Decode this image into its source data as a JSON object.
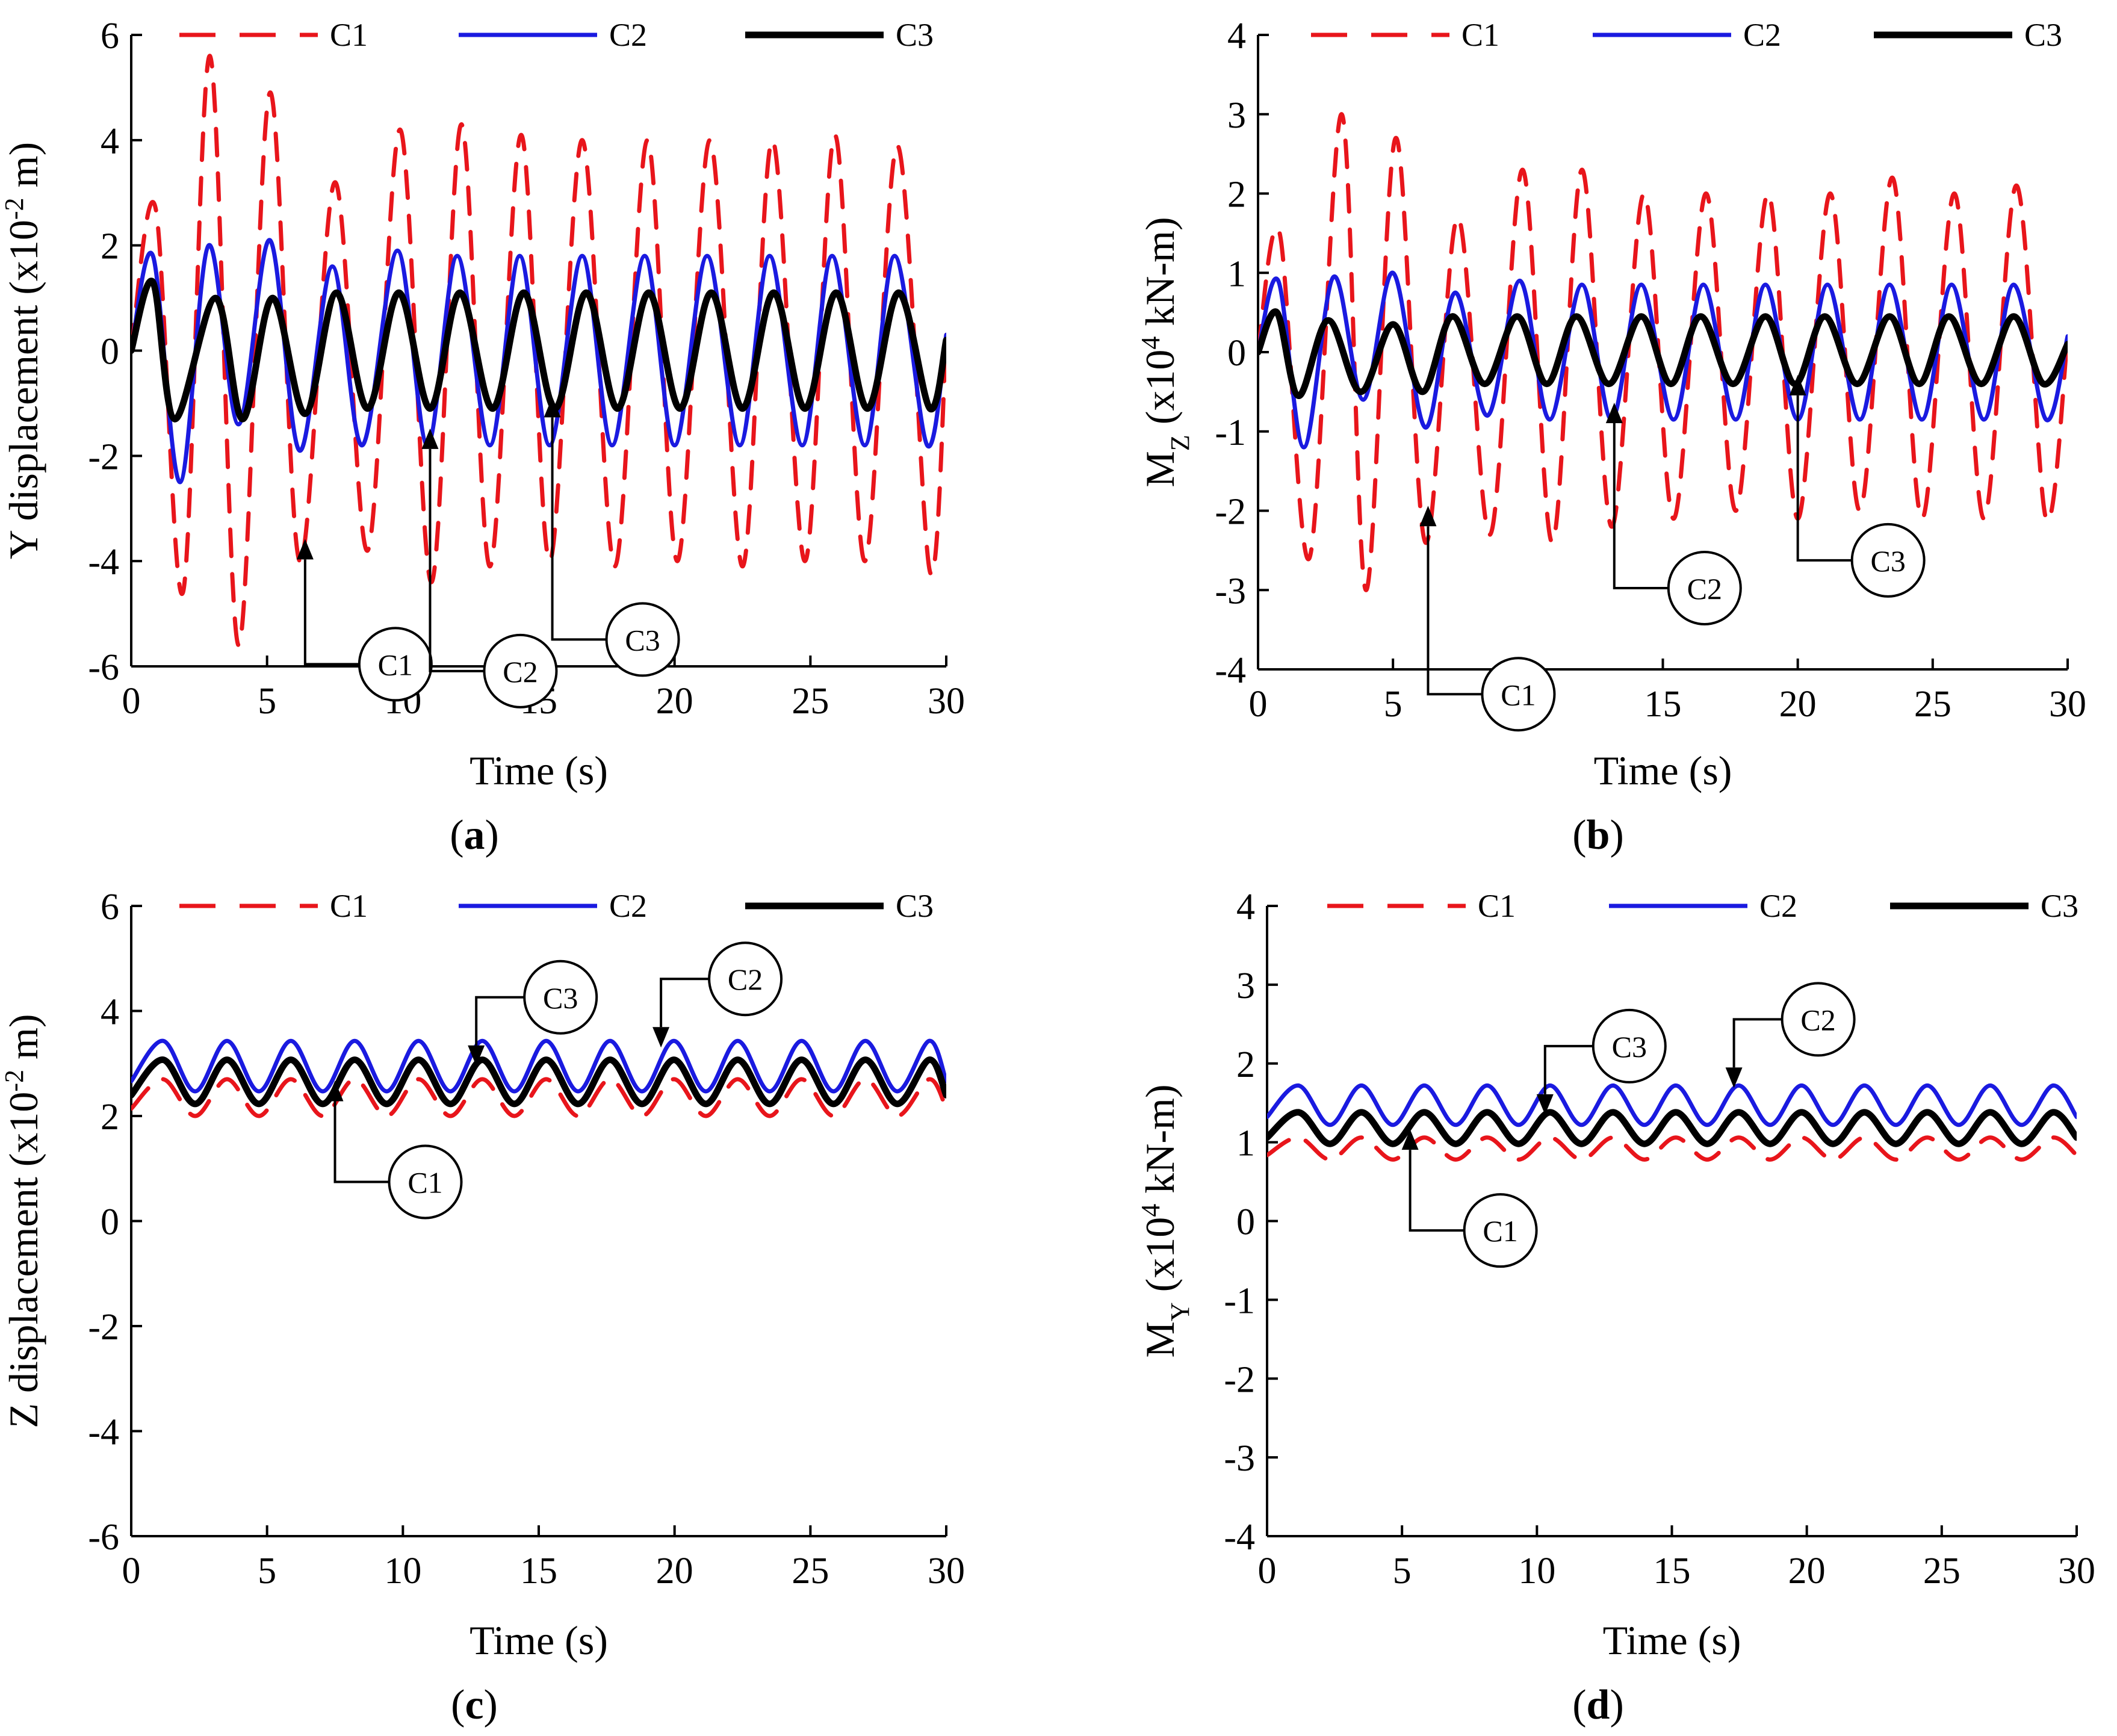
{
  "chart_data": [
    {
      "panel": "a",
      "type": "line",
      "xlabel": "Time (s)",
      "ylabel": "Y displacement (x10-2 m)",
      "ylabel_parts": [
        "Y displacement (x10",
        "-2",
        " m)"
      ],
      "xlim": [
        0,
        30
      ],
      "ylim": [
        -6,
        6
      ],
      "xticks": [
        "0",
        "5",
        "10",
        "15",
        "20",
        "25",
        "30"
      ],
      "yticks": [
        "-6",
        "-4",
        "-2",
        "0",
        "2",
        "4",
        "6"
      ],
      "legend": [
        "C1",
        "C2",
        "C3"
      ],
      "legend_position": "top",
      "series": [
        {
          "name": "C1",
          "color": "#e8151b",
          "style": "dashed",
          "x": [
            0,
            0.9,
            1.9,
            2.9,
            3.95,
            5.1,
            6.2,
            7.5,
            8.7,
            9.9,
            11.05,
            12.15,
            13.2,
            14.35,
            15.4,
            16.6,
            17.8,
            19.0,
            20.1,
            21.3,
            22.5,
            23.6,
            24.8,
            25.9,
            27.0,
            28.2,
            29.4,
            30
          ],
          "y": [
            0,
            2.7,
            -4.6,
            5.6,
            -5.6,
            4.9,
            -4.0,
            3.2,
            -3.8,
            4.2,
            -4.4,
            4.3,
            -4.1,
            4.1,
            -4.0,
            4.0,
            -4.1,
            4.0,
            -4.0,
            4.0,
            -4.1,
            4.0,
            -4.0,
            4.1,
            -4.0,
            3.9,
            -4.2,
            0.3
          ]
        },
        {
          "name": "C2",
          "color": "#1a1ae0",
          "style": "solid",
          "x": [
            0,
            0.8,
            1.8,
            2.85,
            3.95,
            5.1,
            6.2,
            7.4,
            8.5,
            9.8,
            10.9,
            12.0,
            13.2,
            14.3,
            15.4,
            16.6,
            17.7,
            18.9,
            20.0,
            21.2,
            22.4,
            23.5,
            24.7,
            25.8,
            27.0,
            28.1,
            29.3,
            30
          ],
          "y": [
            0,
            1.8,
            -2.5,
            2.0,
            -1.4,
            2.1,
            -1.9,
            1.6,
            -1.8,
            1.9,
            -1.8,
            1.8,
            -1.8,
            1.8,
            -1.8,
            1.8,
            -1.8,
            1.8,
            -1.8,
            1.8,
            -1.8,
            1.8,
            -1.8,
            1.8,
            -1.8,
            1.8,
            -1.8,
            0.3
          ]
        },
        {
          "name": "C3",
          "color": "#000000",
          "style": "solid",
          "x": [
            0,
            0.8,
            1.6,
            3.1,
            4.1,
            5.2,
            6.4,
            7.55,
            8.7,
            9.85,
            11.0,
            12.1,
            13.3,
            14.45,
            15.6,
            16.75,
            17.9,
            19.05,
            20.2,
            21.35,
            22.5,
            23.65,
            24.8,
            25.95,
            27.1,
            28.25,
            29.4,
            30
          ],
          "y": [
            0,
            1.3,
            -1.3,
            1.0,
            -1.3,
            1.0,
            -1.2,
            1.1,
            -1.1,
            1.1,
            -1.1,
            1.1,
            -1.1,
            1.1,
            -1.1,
            1.1,
            -1.1,
            1.1,
            -1.1,
            1.1,
            -1.1,
            1.1,
            -1.1,
            1.1,
            -1.1,
            1.1,
            -1.1,
            0.2
          ]
        }
      ],
      "callouts": [
        {
          "label": "C1",
          "x": 6.4,
          "y": -3.9
        },
        {
          "label": "C2",
          "x": 11.0,
          "y": -1.8
        },
        {
          "label": "C3",
          "x": 15.5,
          "y": -1.2
        }
      ]
    },
    {
      "panel": "b",
      "type": "line",
      "xlabel": "Time (s)",
      "ylabel": "MZ (x104 kN-m)",
      "ylabel_parts": [
        "M",
        "Z",
        "  (x10",
        "4",
        " kN-m)"
      ],
      "xlim": [
        0,
        30
      ],
      "ylim": [
        -4,
        4
      ],
      "xticks": [
        "0",
        "5",
        "10",
        "15",
        "20",
        "25",
        "30"
      ],
      "yticks": [
        "-4",
        "-3",
        "-2",
        "-1",
        "0",
        "1",
        "2",
        "3",
        "4"
      ],
      "legend": [
        "C1",
        "C2",
        "C3"
      ],
      "legend_position": "top",
      "series": [
        {
          "name": "C1",
          "color": "#e8151b",
          "style": "dashed",
          "x": [
            0,
            0.8,
            1.9,
            3.1,
            4.0,
            5.1,
            6.2,
            7.4,
            8.6,
            9.8,
            10.9,
            12.0,
            13.1,
            14.3,
            15.4,
            16.6,
            17.7,
            18.9,
            20.0,
            21.2,
            22.3,
            23.5,
            24.6,
            25.8,
            26.9,
            28.1,
            29.2,
            30
          ],
          "y": [
            0,
            1.5,
            -2.6,
            3.0,
            -3.0,
            2.7,
            -2.4,
            1.7,
            -2.3,
            2.3,
            -2.4,
            2.3,
            -2.2,
            2.0,
            -2.1,
            2.0,
            -2.0,
            2.0,
            -2.1,
            2.0,
            -2.0,
            2.2,
            -2.1,
            2.0,
            -2.1,
            2.1,
            -2.1,
            0.2
          ]
        },
        {
          "name": "C2",
          "color": "#1a1ae0",
          "style": "solid",
          "x": [
            0,
            0.75,
            1.7,
            2.8,
            3.9,
            5.0,
            6.2,
            7.3,
            8.5,
            9.7,
            10.8,
            12.0,
            13.1,
            14.2,
            15.4,
            16.5,
            17.7,
            18.8,
            20.0,
            21.1,
            22.3,
            23.4,
            24.6,
            25.7,
            26.9,
            28.0,
            29.2,
            30
          ],
          "y": [
            0,
            0.9,
            -1.2,
            0.95,
            -0.6,
            1.0,
            -0.95,
            0.75,
            -0.8,
            0.9,
            -0.85,
            0.85,
            -0.85,
            0.85,
            -0.85,
            0.85,
            -0.85,
            0.85,
            -0.85,
            0.85,
            -0.85,
            0.85,
            -0.85,
            0.85,
            -0.85,
            0.85,
            -0.85,
            0.2
          ]
        },
        {
          "name": "C3",
          "color": "#000000",
          "style": "solid",
          "x": [
            0,
            0.7,
            1.5,
            2.6,
            3.8,
            5.0,
            6.1,
            7.2,
            8.4,
            9.6,
            10.7,
            11.8,
            13.0,
            14.2,
            15.3,
            16.4,
            17.6,
            18.8,
            19.9,
            21.0,
            22.2,
            23.4,
            24.5,
            25.6,
            26.8,
            28.0,
            29.1,
            30
          ],
          "y": [
            0,
            0.5,
            -0.55,
            0.4,
            -0.5,
            0.35,
            -0.5,
            0.45,
            -0.4,
            0.45,
            -0.4,
            0.45,
            -0.4,
            0.45,
            -0.4,
            0.45,
            -0.4,
            0.45,
            -0.4,
            0.45,
            -0.4,
            0.45,
            -0.4,
            0.45,
            -0.4,
            0.45,
            -0.4,
            0.1
          ]
        }
      ],
      "callouts": [
        {
          "label": "C1",
          "x": 6.3,
          "y": -2.15
        },
        {
          "label": "C2",
          "x": 13.2,
          "y": -0.85
        },
        {
          "label": "C3",
          "x": 20.0,
          "y": -0.5
        }
      ]
    },
    {
      "panel": "c",
      "type": "line",
      "xlabel": "Time (s)",
      "ylabel": "Z displacement (x10-2 m)",
      "ylabel_parts": [
        "Z displacement (x10",
        "-2",
        " m)"
      ],
      "xlim": [
        0,
        30
      ],
      "ylim": [
        -6,
        6
      ],
      "xticks": [
        "0",
        "5",
        "10",
        "15",
        "20",
        "25",
        "30"
      ],
      "yticks": [
        "-6",
        "-4",
        "-2",
        "0",
        "2",
        "4",
        "6"
      ],
      "legend": [
        "C1",
        "C2",
        "C3"
      ],
      "legend_position": "top",
      "series": [
        {
          "name": "C1",
          "color": "#e8151b",
          "style": "dashed",
          "mean": 2.35,
          "amp": 0.35,
          "period": 2.35,
          "phase0": -1
        },
        {
          "name": "C2",
          "color": "#1a1ae0",
          "style": "solid",
          "mean": 2.95,
          "amp": 0.48,
          "period": 2.35,
          "phase0": -1
        },
        {
          "name": "C3",
          "color": "#000000",
          "style": "solid",
          "mean": 2.65,
          "amp": 0.42,
          "period": 2.35,
          "phase0": -1
        }
      ],
      "callouts": [
        {
          "label": "C1",
          "x": 7.5,
          "y": 2.35
        },
        {
          "label": "C3",
          "x": 12.7,
          "y": 3.0
        },
        {
          "label": "C2",
          "x": 19.5,
          "y": 3.35
        }
      ]
    },
    {
      "panel": "d",
      "type": "line",
      "xlabel": "Time (s)",
      "ylabel": "MY (x104 kN-m)",
      "ylabel_parts": [
        "M",
        "Y",
        "  (x10",
        "4",
        " kN-m)"
      ],
      "xlim": [
        0,
        30
      ],
      "ylim": [
        -4,
        4
      ],
      "xticks": [
        "0",
        "5",
        "10",
        "15",
        "20",
        "25",
        "30"
      ],
      "yticks": [
        "-4",
        "-3",
        "-2",
        "-1",
        "0",
        "1",
        "2",
        "3",
        "4"
      ],
      "legend": [
        "C1",
        "C2",
        "C3"
      ],
      "legend_position": "top",
      "series": [
        {
          "name": "C1",
          "color": "#e8151b",
          "style": "dashed",
          "mean": 0.92,
          "amp": 0.14,
          "period": 2.33,
          "phase0": -1
        },
        {
          "name": "C2",
          "color": "#1a1ae0",
          "style": "solid",
          "mean": 1.47,
          "amp": 0.25,
          "period": 2.33,
          "phase0": -1
        },
        {
          "name": "C3",
          "color": "#000000",
          "style": "solid",
          "mean": 1.18,
          "amp": 0.2,
          "period": 2.33,
          "phase0": -1
        }
      ],
      "callouts": [
        {
          "label": "C1",
          "x": 5.3,
          "y": 0.95
        },
        {
          "label": "C3",
          "x": 10.3,
          "y": 1.38
        },
        {
          "label": "C2",
          "x": 17.3,
          "y": 1.72
        }
      ]
    }
  ],
  "panel_labels": [
    "a",
    "b",
    "c",
    "d"
  ]
}
